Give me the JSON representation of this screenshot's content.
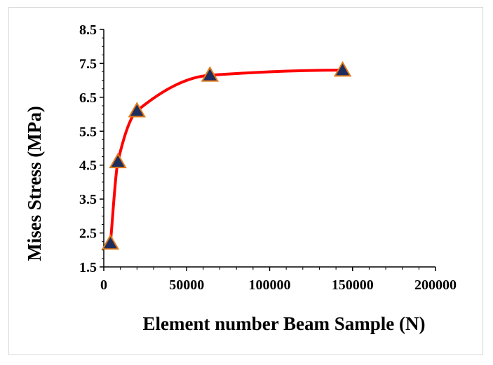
{
  "chart_data": {
    "type": "scatter",
    "title": "",
    "xlabel": "Element number Beam Sample (N)",
    "ylabel": "Mises Stress (MPa)",
    "xlim": [
      0,
      200000
    ],
    "ylim": [
      1.5,
      8.5
    ],
    "x_ticks": [
      0,
      50000,
      100000,
      150000,
      200000
    ],
    "y_ticks": [
      1.5,
      2.5,
      3.5,
      4.5,
      5.5,
      6.5,
      7.5,
      8.5
    ],
    "x_tick_labels": [
      "0",
      "50000",
      "100000",
      "150000",
      "200000"
    ],
    "y_tick_labels": [
      "1.5",
      "2.5",
      "3.5",
      "4.5",
      "5.5",
      "6.5",
      "7.5",
      "8.5"
    ],
    "grid": false,
    "legend": "none",
    "series": [
      {
        "marker": "triangle",
        "smooth_line": true,
        "x": [
          4000,
          8500,
          20000,
          64000,
          144000
        ],
        "y": [
          2.2,
          4.6,
          6.1,
          7.15,
          7.3
        ]
      }
    ],
    "colors": {
      "line": "#ff0000",
      "marker_fill": "#1f2d5e",
      "marker_edge": "#e07b1a",
      "axis": "#000000"
    }
  }
}
